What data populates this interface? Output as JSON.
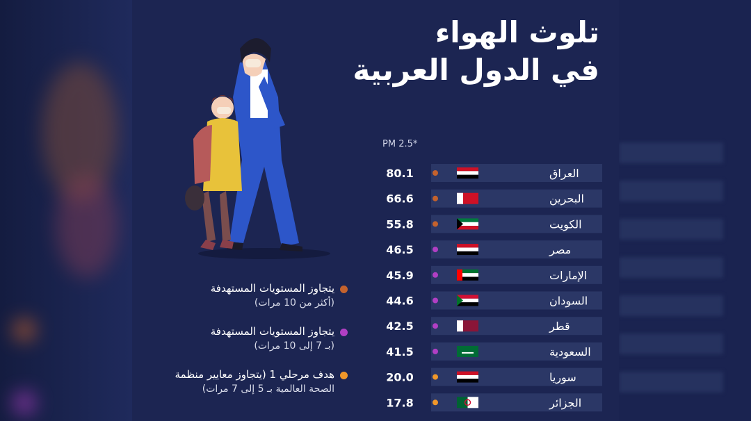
{
  "title_line1": "تلوث الهواء",
  "title_line2": "في الدول العربية",
  "unit_label": "PM 2.5*",
  "legend": [
    {
      "line1": "يتجاوز المستويات المستهدفة",
      "line2": "(أكثر من 10 مرات)",
      "color": "#c4622d"
    },
    {
      "line1": "يتجاوز المستويات المستهدفة",
      "line2": "(بـ 7 إلى 10 مرات)",
      "color": "#b13fc4"
    },
    {
      "line1": "هدف مرحلي 1 (يتجاوز معايير منظمة",
      "line2": "الصحة العالمية بـ 5 إلى 7 مرات)",
      "color": "#f0972a"
    }
  ],
  "chart_data": {
    "type": "bar",
    "title": "تلوث الهواء في الدول العربية",
    "unit": "PM 2.5*",
    "categories": [
      "العراق",
      "البحرين",
      "الكويت",
      "مصر",
      "الإمارات",
      "السودان",
      "قطر",
      "السعودية",
      "سوريا",
      "الجزائر"
    ],
    "values": [
      80.1,
      66.6,
      55.8,
      46.5,
      45.9,
      44.6,
      42.5,
      41.5,
      20.0,
      17.8
    ],
    "labels": [
      "80.1",
      "66.6",
      "55.8",
      "46.5",
      "45.9",
      "44.6",
      "42.5",
      "41.5",
      "20.0",
      "17.8"
    ],
    "dot_colors": [
      "#c4622d",
      "#c4622d",
      "#c4622d",
      "#b13fc4",
      "#b13fc4",
      "#b13fc4",
      "#b13fc4",
      "#b13fc4",
      "#f0972a",
      "#f0972a"
    ],
    "flag_icons": [
      "iraq-flag-icon",
      "bahrain-flag-icon",
      "kuwait-flag-icon",
      "egypt-flag-icon",
      "uae-flag-icon",
      "sudan-flag-icon",
      "qatar-flag-icon",
      "saudi-flag-icon",
      "syria-flag-icon",
      "algeria-flag-icon"
    ]
  },
  "colors": {
    "background": "#1c2552",
    "row": "#2b3766",
    "text": "#ffffff"
  }
}
